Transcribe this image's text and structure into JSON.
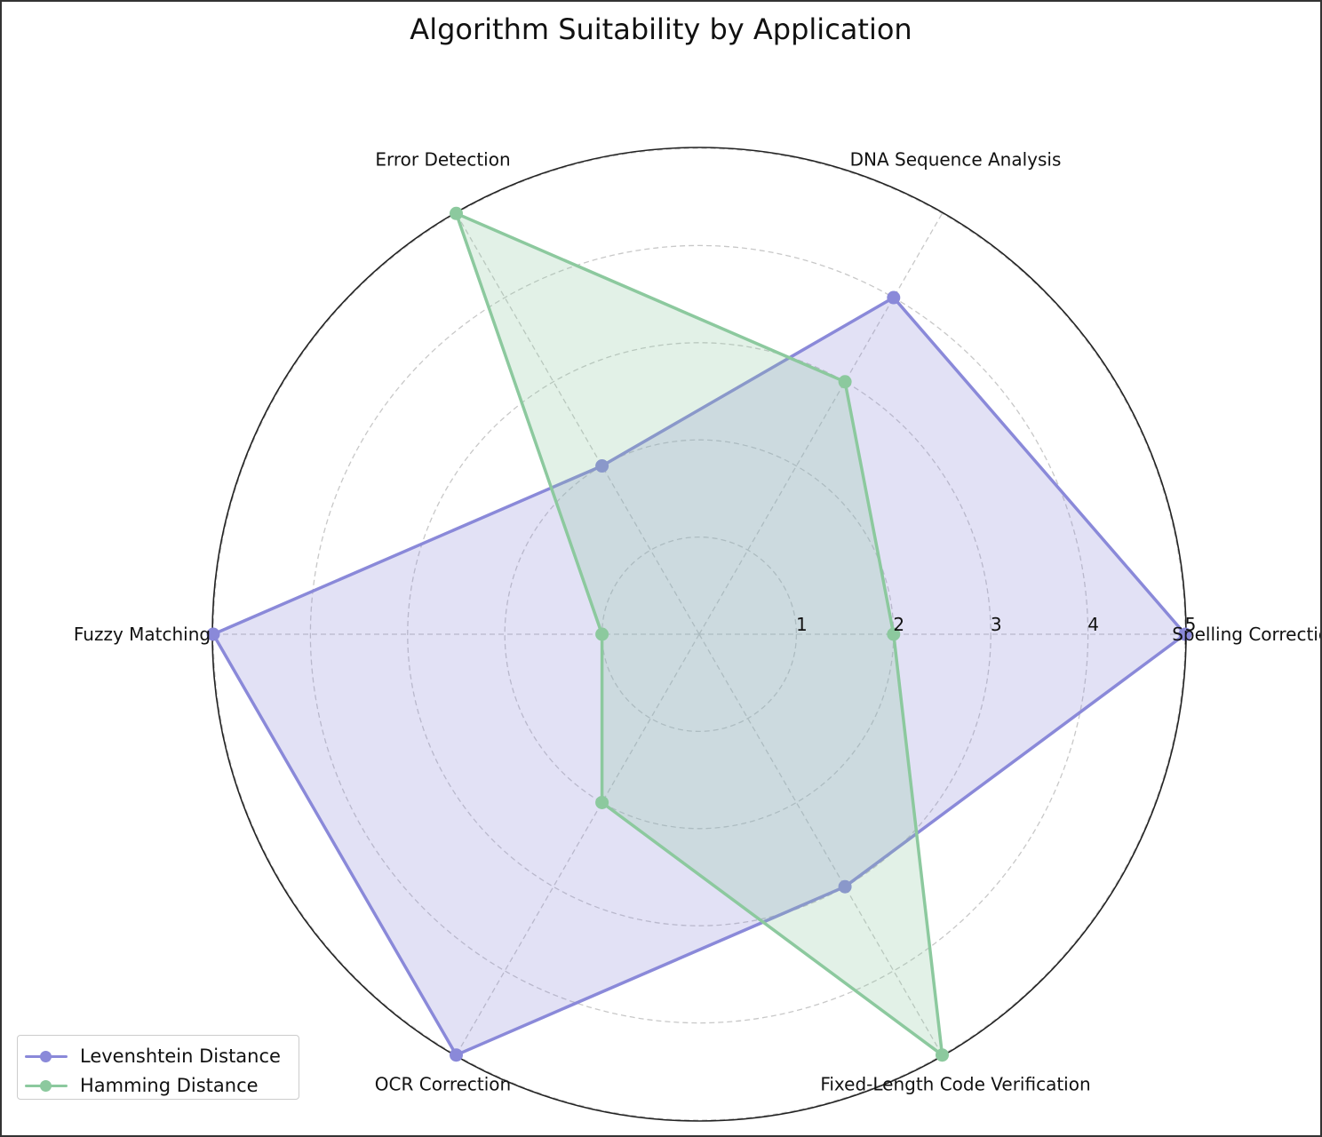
{
  "chart_data": {
    "type": "radar",
    "title": "Algorithm Suitability by Application",
    "categories": [
      "Spelling Correction",
      "DNA Sequence Analysis",
      "Error Detection",
      "Fuzzy Matching",
      "OCR Correction",
      "Fixed-Length Code Verification"
    ],
    "series": [
      {
        "name": "Levenshtein Distance",
        "values": [
          5,
          4,
          2,
          5,
          5,
          3
        ],
        "color": "#8a89d9",
        "fill": "#8a89d9"
      },
      {
        "name": "Hamming Distance",
        "values": [
          2,
          3,
          5,
          1,
          2,
          5
        ],
        "color": "#8cc99e",
        "fill": "#8cc99e"
      }
    ],
    "rlim": [
      0,
      5
    ],
    "radial_ticks": [
      "1",
      "2",
      "3",
      "4",
      "5"
    ],
    "grid": true,
    "legend_position": "lower-left"
  }
}
